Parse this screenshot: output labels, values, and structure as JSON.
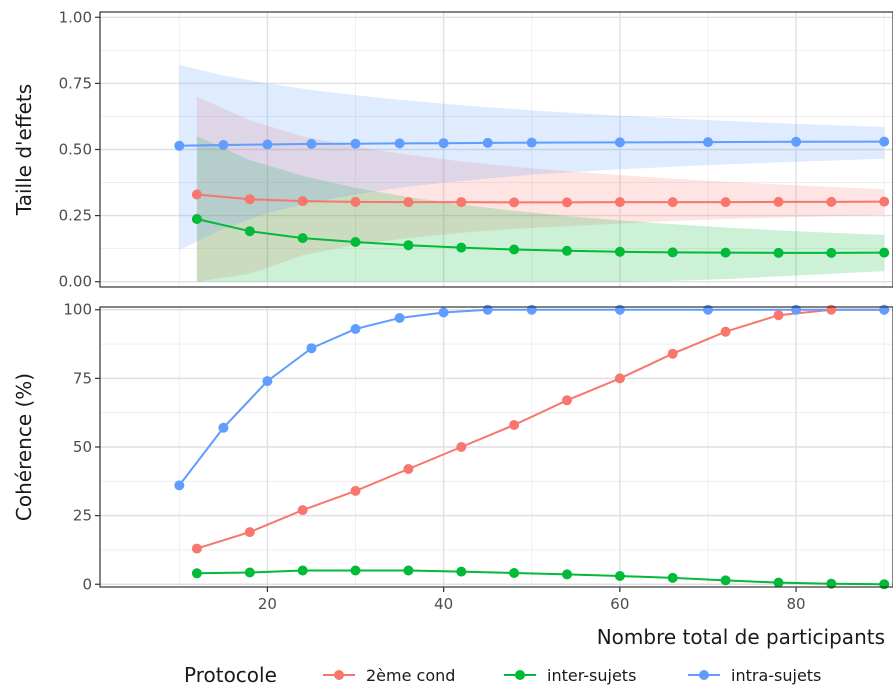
{
  "chart_data": [
    {
      "type": "line",
      "ylabel": "Taille d'effets",
      "ylim": [
        -0.02,
        1.02
      ],
      "yticks": [
        0.0,
        0.25,
        0.5,
        0.75,
        1.0
      ],
      "ytick_labels": [
        "0.00",
        "0.25",
        "0.50",
        "0.75",
        "1.00"
      ],
      "grid": true,
      "series": [
        {
          "name": "2ème cond",
          "color": "#F8766D",
          "x": [
            12,
            18,
            24,
            30,
            36,
            42,
            48,
            54,
            60,
            66,
            72,
            78,
            84,
            90
          ],
          "values": [
            0.33,
            0.312,
            0.305,
            0.302,
            0.301,
            0.301,
            0.3,
            0.3,
            0.301,
            0.301,
            0.301,
            0.302,
            0.302,
            0.303
          ],
          "ribbon_lower": [
            0.0,
            0.03,
            0.1,
            0.14,
            0.165,
            0.185,
            0.2,
            0.21,
            0.22,
            0.23,
            0.237,
            0.243,
            0.248,
            0.253
          ],
          "ribbon_upper": [
            0.7,
            0.61,
            0.55,
            0.51,
            0.48,
            0.455,
            0.435,
            0.418,
            0.403,
            0.39,
            0.378,
            0.368,
            0.358,
            0.35
          ]
        },
        {
          "name": "inter-sujets",
          "color": "#00BA38",
          "x": [
            12,
            18,
            24,
            30,
            36,
            42,
            48,
            54,
            60,
            66,
            72,
            78,
            84,
            90
          ],
          "values": [
            0.237,
            0.191,
            0.165,
            0.15,
            0.138,
            0.129,
            0.122,
            0.117,
            0.113,
            0.111,
            0.11,
            0.109,
            0.109,
            0.11
          ],
          "ribbon_lower": [
            0.0,
            0.0,
            0.0,
            0.0,
            0.0,
            0.0,
            0.0,
            0.0,
            0.0,
            0.003,
            0.01,
            0.02,
            0.03,
            0.04
          ],
          "ribbon_upper": [
            0.55,
            0.46,
            0.4,
            0.355,
            0.32,
            0.292,
            0.268,
            0.248,
            0.232,
            0.218,
            0.205,
            0.194,
            0.185,
            0.177
          ]
        },
        {
          "name": "intra-sujets",
          "color": "#619CFF",
          "x": [
            10,
            15,
            20,
            25,
            30,
            35,
            40,
            45,
            50,
            60,
            70,
            80,
            90
          ],
          "values": [
            0.514,
            0.517,
            0.519,
            0.521,
            0.522,
            0.523,
            0.524,
            0.525,
            0.526,
            0.527,
            0.528,
            0.529,
            0.53
          ],
          "ribbon_lower": [
            0.12,
            0.2,
            0.26,
            0.3,
            0.33,
            0.355,
            0.375,
            0.39,
            0.405,
            0.425,
            0.441,
            0.454,
            0.465
          ],
          "ribbon_upper": [
            0.82,
            0.78,
            0.75,
            0.725,
            0.705,
            0.688,
            0.673,
            0.66,
            0.648,
            0.628,
            0.611,
            0.597,
            0.585
          ]
        }
      ]
    },
    {
      "type": "line",
      "ylabel": "Cohérence (%)",
      "xlabel": "Nombre total de participants",
      "ylim": [
        -1,
        101
      ],
      "yticks": [
        0,
        25,
        50,
        75,
        100
      ],
      "ytick_labels": [
        "0",
        "25",
        "50",
        "75",
        "100"
      ],
      "grid": true,
      "series": [
        {
          "name": "2ème cond",
          "color": "#F8766D",
          "x": [
            12,
            18,
            24,
            30,
            36,
            42,
            48,
            54,
            60,
            66,
            72,
            78,
            84,
            90
          ],
          "values": [
            13,
            19,
            27,
            34,
            42,
            50,
            58,
            67,
            75,
            84,
            92,
            98,
            100,
            100
          ]
        },
        {
          "name": "inter-sujets",
          "color": "#00BA38",
          "x": [
            12,
            18,
            24,
            30,
            36,
            42,
            48,
            54,
            60,
            66,
            72,
            78,
            84,
            90
          ],
          "values": [
            4,
            4.3,
            5,
            5,
            5,
            4.6,
            4.1,
            3.6,
            3,
            2.3,
            1.4,
            0.6,
            0.2,
            0
          ]
        },
        {
          "name": "intra-sujets",
          "color": "#619CFF",
          "x": [
            10,
            15,
            20,
            25,
            30,
            35,
            40,
            45,
            50,
            60,
            70,
            80,
            90
          ],
          "values": [
            36,
            57,
            74,
            86,
            93,
            97,
            99,
            100,
            100,
            100,
            100,
            100,
            100
          ]
        }
      ]
    }
  ],
  "x_axis": {
    "xlim": [
      1,
      91
    ],
    "ticks": [
      20,
      40,
      60,
      80
    ],
    "tick_labels": [
      "20",
      "40",
      "60",
      "80"
    ],
    "minor_ticks": [
      10,
      30,
      50,
      70,
      90
    ]
  },
  "legend": {
    "title": "Protocole",
    "position": "bottom",
    "items": [
      "2ème cond",
      "inter-sujets",
      "intra-sujets"
    ]
  }
}
